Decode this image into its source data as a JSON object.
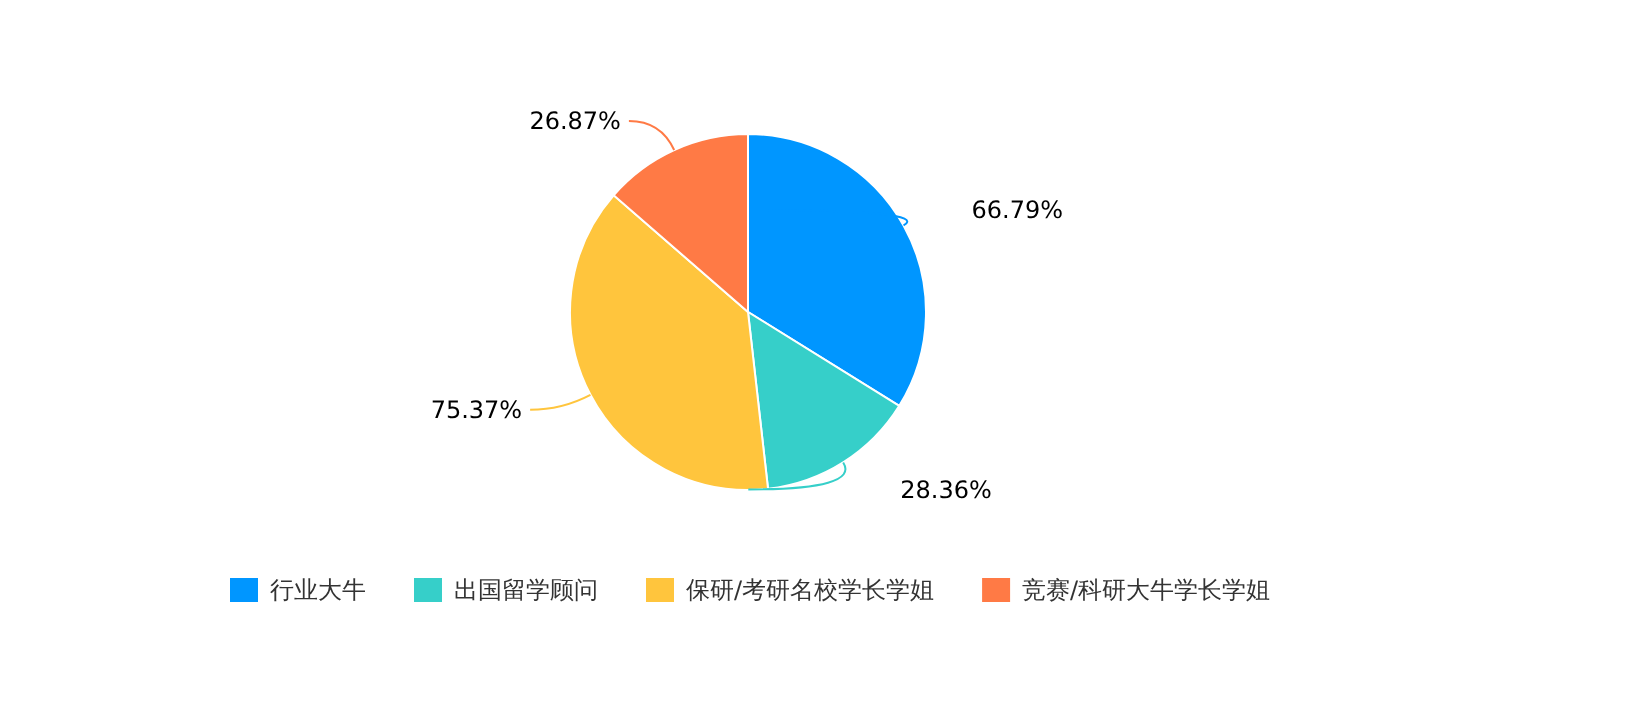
{
  "chart_data": {
    "type": "pie",
    "categories": [
      "行业大牛",
      "出国留学顾问",
      "保研/考研名校学长学姐",
      "竞赛/科研大牛学长学姐"
    ],
    "values": [
      66.79,
      28.36,
      75.37,
      26.87
    ],
    "colors": [
      "#0096ff",
      "#36cfc9",
      "#ffc53d",
      "#ff7a45"
    ],
    "value_labels": [
      "66.79%",
      "28.36%",
      "75.37%",
      "26.87%"
    ],
    "legend": "bottom"
  }
}
